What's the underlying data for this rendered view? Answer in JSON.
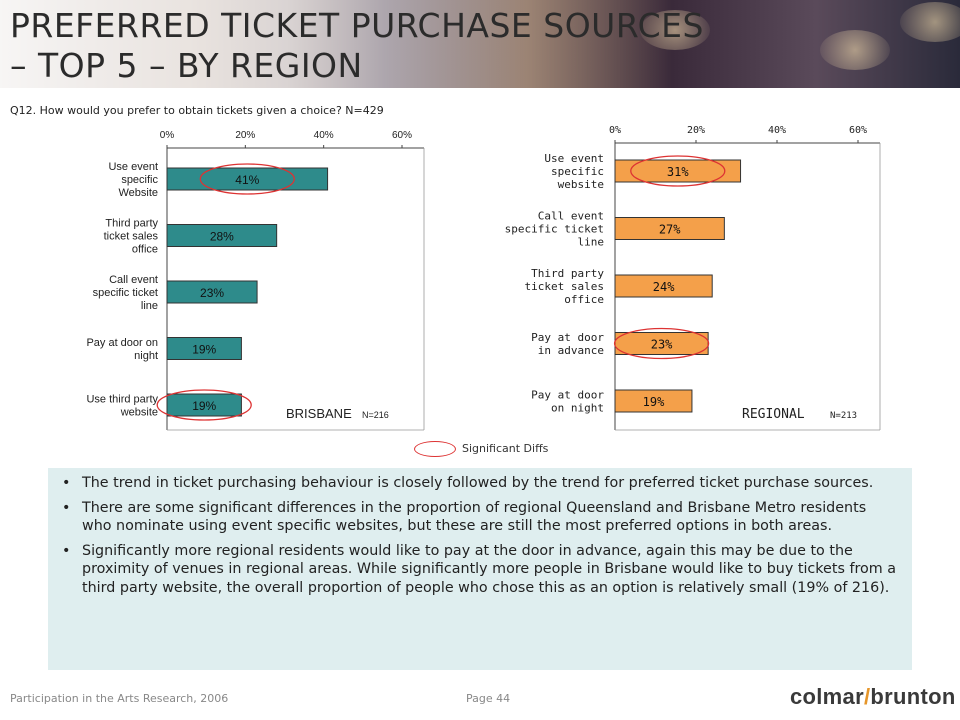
{
  "header": {
    "title_line1": "PREFERRED TICKET PURCHASE SOURCES",
    "title_line2": "– TOP 5 – BY REGION"
  },
  "question": "Q12. How would you prefer to obtain tickets given a choice? N=429",
  "colors": {
    "brisbane_bar": "#2e8b8b",
    "regional_bar": "#f4a04a",
    "significance_oval": "#dd3333",
    "notes_bg": "#dfeeef"
  },
  "chart_data": [
    {
      "type": "bar",
      "orientation": "horizontal",
      "region_label": "BRISBANE",
      "n_label": "N=216",
      "categories": [
        "Use event specific Website",
        "Third party ticket sales office",
        "Call event specific ticket line",
        "Pay at door on night",
        "Use third party website"
      ],
      "values": [
        41,
        28,
        23,
        19,
        19
      ],
      "value_labels": [
        "41%",
        "28%",
        "23%",
        "19%",
        "19%"
      ],
      "significant": [
        true,
        false,
        false,
        false,
        true
      ],
      "xlim": [
        0,
        60
      ],
      "ticks": [
        "0%",
        "20%",
        "40%",
        "60%"
      ],
      "color": "#2e8b8b"
    },
    {
      "type": "bar",
      "orientation": "horizontal",
      "region_label": "REGIONAL",
      "n_label": "N=213",
      "categories": [
        "Use event specific website",
        "Call event specific ticket line",
        "Third party ticket sales office",
        "Pay at door in advance",
        "Pay at door on night"
      ],
      "values": [
        31,
        27,
        24,
        23,
        19
      ],
      "value_labels": [
        "31%",
        "27%",
        "24%",
        "23%",
        "19%"
      ],
      "significant": [
        true,
        false,
        false,
        true,
        false
      ],
      "xlim": [
        0,
        60
      ],
      "ticks": [
        "0%",
        "20%",
        "40%",
        "60%"
      ],
      "color": "#f4a04a"
    }
  ],
  "legend": {
    "label": "Significant Diffs"
  },
  "notes": [
    "The trend in ticket purchasing behaviour is closely followed by the trend for preferred ticket purchase sources.",
    "There are some significant differences in the proportion of regional Queensland and Brisbane Metro residents who nominate using event specific websites, but these are still the most preferred options in both areas.",
    "Significantly more regional residents would like to pay at the door in advance, again this may be due to the proximity of venues in regional areas.  While significantly more people in Brisbane would like to buy tickets from a third party website, the overall proportion of people who chose this as an option is relatively small (19% of 216)."
  ],
  "footer": {
    "left": "Participation in the Arts Research, 2006",
    "page": "Page 44",
    "logo_part1": "colmar",
    "logo_part2": "brunton"
  }
}
